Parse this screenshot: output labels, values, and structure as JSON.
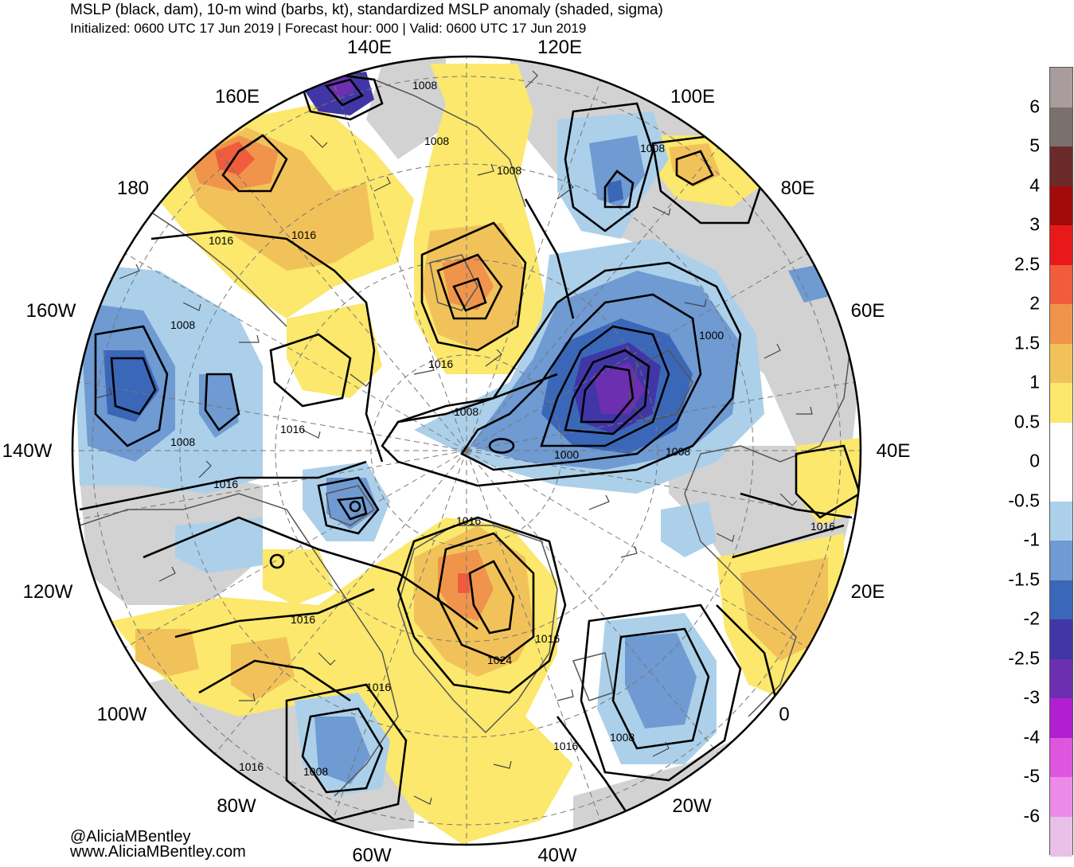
{
  "header": {
    "title": "MSLP (black, dam), 10-m wind (barbs, kt), standardized MSLP anomaly (shaded, sigma)",
    "subtitle": "Initialized: 0600 UTC 17 Jun 2019 | Forecast hour: 000 | Valid: 0600 UTC 17 Jun 2019"
  },
  "longitude_labels": {
    "e140": "140E",
    "e120": "120E",
    "e100": "100E",
    "e80": "80E",
    "e60": "60E",
    "e40": "40E",
    "e20": "20E",
    "zero": "0",
    "w20": "20W",
    "w40": "40W",
    "w60": "60W",
    "w80": "80W",
    "w100": "100W",
    "w120": "120W",
    "w140": "140W",
    "w160": "160W",
    "d180": "180",
    "e160": "160E"
  },
  "contour_labels": [
    "1008",
    "1008",
    "1008",
    "1016",
    "1016",
    "1016",
    "1008",
    "1008",
    "1016",
    "1008",
    "1000",
    "1000",
    "1008",
    "1008",
    "1016",
    "1016",
    "1016",
    "1016",
    "1024",
    "1016",
    "1008",
    "1016",
    "1016",
    "1008"
  ],
  "colorbar": {
    "labels": [
      "6",
      "5",
      "4",
      "3",
      "2.5",
      "2",
      "1.5",
      "1",
      "0.5",
      "0",
      "-0.5",
      "-1",
      "-1.5",
      "-2",
      "-2.5",
      "-3",
      "-4",
      "-5",
      "-6"
    ],
    "colors": [
      "#a89c9c",
      "#7a706e",
      "#6b2a2a",
      "#a30a0a",
      "#e8191a",
      "#f05c3c",
      "#f0944c",
      "#f2c25a",
      "#fbe86c",
      "#ffffff",
      "#ffffff",
      "#acd0ea",
      "#6f9ad2",
      "#3b67b8",
      "#4036a6",
      "#6b2fb0",
      "#b21fd0",
      "#de55de",
      "#ec8aea",
      "#e8c0e8"
    ]
  },
  "credits": {
    "handle": "@AliciaMBentley",
    "site": "www.AliciaMBentley.com"
  }
}
